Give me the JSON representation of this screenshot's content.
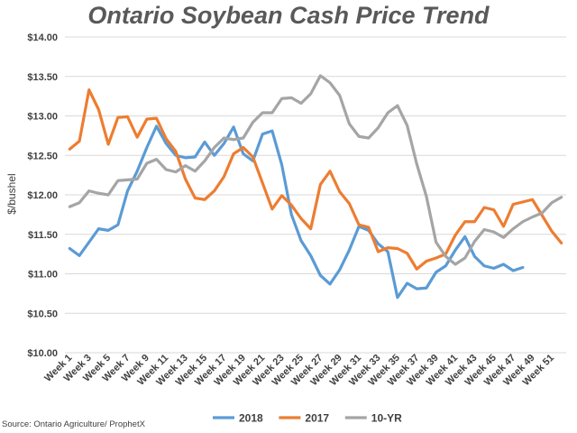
{
  "chart_data": {
    "type": "line",
    "title": "Ontario Soybean Cash Price Trend",
    "ylabel": "$/bushel",
    "xlabel": "",
    "ylim": [
      10.0,
      14.0
    ],
    "yticks": [
      "$10.00",
      "$10.50",
      "$11.00",
      "$11.50",
      "$12.00",
      "$12.50",
      "$13.00",
      "$13.50",
      "$14.00"
    ],
    "ytick_values": [
      10.0,
      10.5,
      11.0,
      11.5,
      12.0,
      12.5,
      13.0,
      13.5,
      14.0
    ],
    "grid": true,
    "legend_position": "bottom",
    "x": [
      "Week 1",
      "Week 2",
      "Week 3",
      "Week 4",
      "Week 5",
      "Week 6",
      "Week 7",
      "Week 8",
      "Week 9",
      "Week 10",
      "Week 11",
      "Week 12",
      "Week 13",
      "Week 14",
      "Week 15",
      "Week 16",
      "Week 17",
      "Week 18",
      "Week 19",
      "Week 20",
      "Week 21",
      "Week 22",
      "Week 23",
      "Week 24",
      "Week 25",
      "Week 26",
      "Week 27",
      "Week 28",
      "Week 29",
      "Week 30",
      "Week 31",
      "Week 32",
      "Week 33",
      "Week 34",
      "Week 35",
      "Week 36",
      "Week 37",
      "Week 38",
      "Week 39",
      "Week 40",
      "Week 41",
      "Week 42",
      "Week 43",
      "Week 44",
      "Week 45",
      "Week 46",
      "Week 47",
      "Week 48",
      "Week 49",
      "Week 50",
      "Week 51",
      "Week 52"
    ],
    "xtick_labels": [
      "Week 1",
      "Week 3",
      "Week 5",
      "Week 7",
      "Week 9",
      "Week 11",
      "Week 13",
      "Week 15",
      "Week 17",
      "Week 19",
      "Week 21",
      "Week 23",
      "Week 25",
      "Week 27",
      "Week 29",
      "Week 31",
      "Week 33",
      "Week 35",
      "Week 37",
      "Week 39",
      "Week 41",
      "Week 43",
      "Week 45",
      "Week 47",
      "Week 49",
      "Week 51"
    ],
    "series": [
      {
        "name": "2018",
        "color": "#5b9bd5",
        "values": [
          11.32,
          11.23,
          11.4,
          11.57,
          11.55,
          11.62,
          12.05,
          12.3,
          12.6,
          12.87,
          12.65,
          12.5,
          12.47,
          12.48,
          12.67,
          12.5,
          12.65,
          12.86,
          12.52,
          12.43,
          12.77,
          12.81,
          12.38,
          11.75,
          11.42,
          11.23,
          10.98,
          10.87,
          11.05,
          11.3,
          11.6,
          11.55,
          11.38,
          11.28,
          10.7,
          10.88,
          10.81,
          10.82,
          11.02,
          11.1,
          11.3,
          11.47,
          11.22,
          11.1,
          11.07,
          11.12,
          11.04,
          11.08,
          null,
          null,
          null,
          null
        ]
      },
      {
        "name": "2017",
        "color": "#ed7d31",
        "values": [
          12.58,
          12.68,
          13.33,
          13.08,
          12.64,
          12.98,
          12.99,
          12.73,
          12.96,
          12.97,
          12.71,
          12.55,
          12.2,
          11.96,
          11.94,
          12.05,
          12.23,
          12.52,
          12.6,
          12.48,
          12.15,
          11.82,
          11.99,
          11.87,
          11.7,
          11.57,
          12.13,
          12.3,
          12.04,
          11.89,
          11.62,
          11.59,
          11.28,
          11.33,
          11.32,
          11.26,
          11.06,
          11.16,
          11.2,
          11.25,
          11.49,
          11.66,
          11.66,
          11.84,
          11.81,
          11.6,
          11.88,
          11.91,
          11.94,
          11.74,
          11.54,
          11.39
        ]
      },
      {
        "name": "10-YR",
        "color": "#a5a5a5",
        "values": [
          11.85,
          11.9,
          12.05,
          12.02,
          12.0,
          12.18,
          12.19,
          12.2,
          12.4,
          12.45,
          12.32,
          12.29,
          12.37,
          12.3,
          12.43,
          12.6,
          12.72,
          12.7,
          12.72,
          12.92,
          13.04,
          13.04,
          13.22,
          13.23,
          13.16,
          13.28,
          13.51,
          13.42,
          13.26,
          12.9,
          12.74,
          12.72,
          12.85,
          13.04,
          13.13,
          12.88,
          12.39,
          11.98,
          11.4,
          11.22,
          11.12,
          11.2,
          11.41,
          11.56,
          11.53,
          11.46,
          11.57,
          11.66,
          11.72,
          11.77,
          11.9,
          11.97
        ]
      }
    ],
    "source": "Source: Ontario Agriculture/ ProphetX"
  }
}
